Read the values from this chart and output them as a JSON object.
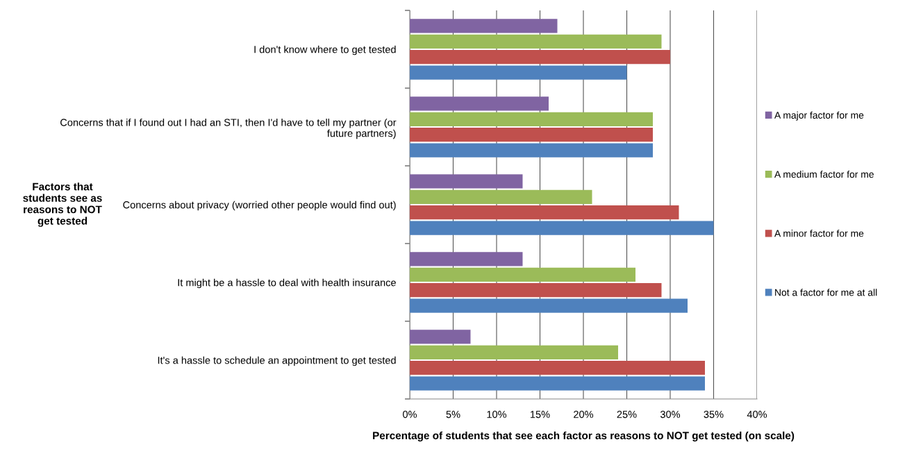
{
  "chart_data": {
    "type": "bar",
    "orientation": "horizontal",
    "categories": [
      "I don't know where to get tested",
      "Concerns that if I found out I had an STI, then I'd have to tell my partner (or\nfuture partners)",
      "Concerns about privacy (worried other people would find out)",
      "It might be a hassle to deal with health insurance",
      "It's a hassle to schedule an appointment to get tested"
    ],
    "series": [
      {
        "name": "A major factor for me",
        "color": "#8064a2",
        "values": [
          17,
          16,
          13,
          13,
          7
        ]
      },
      {
        "name": "A medium factor for me",
        "color": "#9bbb59",
        "values": [
          29,
          28,
          21,
          26,
          24
        ]
      },
      {
        "name": "A minor factor for me",
        "color": "#c0504d",
        "values": [
          30,
          28,
          31,
          29,
          34
        ]
      },
      {
        "name": "Not a factor for me at all",
        "color": "#4f81bd",
        "values": [
          25,
          28,
          35,
          32,
          34
        ]
      }
    ],
    "xlim": [
      0,
      40
    ],
    "xticks": [
      {
        "value": 0,
        "label": "0%"
      },
      {
        "value": 5,
        "label": "5%"
      },
      {
        "value": 10,
        "label": "10%"
      },
      {
        "value": 15,
        "label": "15%"
      },
      {
        "value": 20,
        "label": "20%"
      },
      {
        "value": 25,
        "label": "25%"
      },
      {
        "value": 30,
        "label": "30%"
      },
      {
        "value": 35,
        "label": "35%"
      },
      {
        "value": 40,
        "label": "40%"
      }
    ],
    "xlabel": "Percentage of students that see each factor as reasons to NOT get tested (on scale)",
    "ylabel": "Factors that\nstudents see as\nreasons to NOT\nget tested",
    "grid": "x",
    "legend": "right"
  }
}
